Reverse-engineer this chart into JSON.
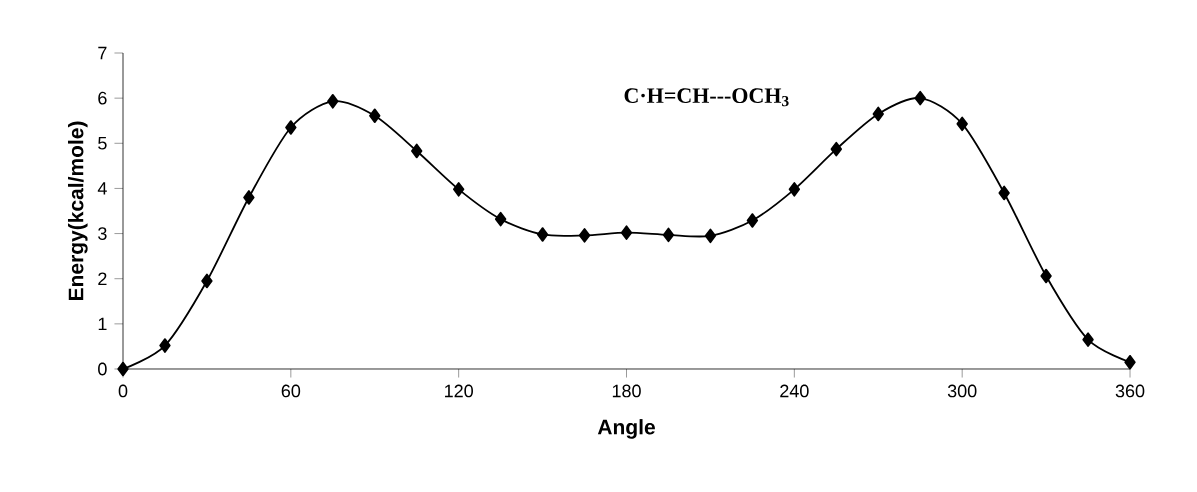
{
  "chart_data": {
    "type": "line",
    "xlabel": "Angle",
    "ylabel": "Energy(kcal/mole)",
    "annotations": [
      "C·H=CH---OCH$_{3}$"
    ],
    "x": [
      0,
      15,
      30,
      45,
      60,
      75,
      90,
      105,
      120,
      135,
      150,
      165,
      180,
      195,
      210,
      225,
      240,
      255,
      270,
      285,
      300,
      315,
      330,
      345,
      360
    ],
    "series": [
      {
        "color": "#000000",
        "values": [
          0,
          0.52,
          1.95,
          3.8,
          5.35,
          5.93,
          5.61,
          4.83,
          3.98,
          3.32,
          2.98,
          2.96,
          3.02,
          2.97,
          2.95,
          3.29,
          3.98,
          4.87,
          5.65,
          6.0,
          5.43,
          3.9,
          2.06,
          0.65,
          0.15
        ]
      }
    ],
    "xlim": [
      0,
      360
    ],
    "xticks": [
      0,
      60,
      120,
      180,
      240,
      300,
      360
    ],
    "ylim": [
      0,
      7
    ],
    "yticks": [
      0,
      1,
      2,
      3,
      4,
      5,
      6,
      7
    ],
    "marker": "diamond",
    "line_style": "solid"
  }
}
